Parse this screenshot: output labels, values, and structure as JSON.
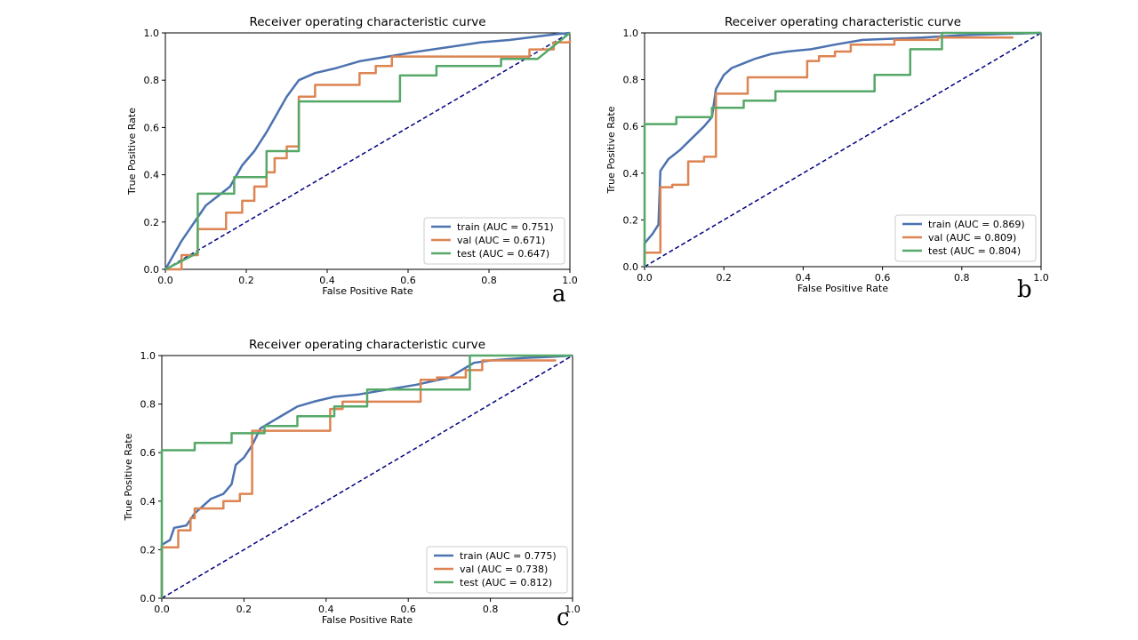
{
  "chart_data": [
    {
      "panel": "a",
      "type": "line",
      "title": "Receiver operating characteristic curve",
      "xlabel": "False Positive Rate",
      "ylabel": "True Positive Rate",
      "xlim": [
        0,
        1
      ],
      "ylim": [
        0,
        1
      ],
      "xticks": [
        "0.0",
        "0.2",
        "0.4",
        "0.6",
        "0.8",
        "1.0"
      ],
      "yticks": [
        "0.0",
        "0.2",
        "0.4",
        "0.6",
        "0.8",
        "1.0"
      ],
      "legend_position": "lower-right",
      "reference_line": {
        "style": "dashed",
        "color": "#000080",
        "x": [
          0,
          1
        ],
        "y": [
          0,
          1
        ]
      },
      "series": [
        {
          "name": "train (AUC = 0.751)",
          "color": "#4c72b0",
          "x": [
            0,
            0.02,
            0.04,
            0.06,
            0.08,
            0.1,
            0.13,
            0.16,
            0.19,
            0.22,
            0.25,
            0.28,
            0.3,
            0.33,
            0.37,
            0.42,
            0.48,
            0.55,
            0.62,
            0.7,
            0.78,
            0.85,
            0.92,
            0.97,
            1.0
          ],
          "y": [
            0,
            0.06,
            0.12,
            0.17,
            0.22,
            0.27,
            0.31,
            0.35,
            0.44,
            0.5,
            0.58,
            0.67,
            0.73,
            0.8,
            0.83,
            0.85,
            0.88,
            0.9,
            0.92,
            0.94,
            0.96,
            0.97,
            0.985,
            0.995,
            1.0
          ]
        },
        {
          "name": "val (AUC = 0.671)",
          "color": "#dd8452",
          "x": [
            0,
            0.04,
            0.04,
            0.08,
            0.08,
            0.15,
            0.15,
            0.19,
            0.19,
            0.22,
            0.22,
            0.25,
            0.25,
            0.27,
            0.27,
            0.3,
            0.3,
            0.33,
            0.33,
            0.37,
            0.37,
            0.48,
            0.48,
            0.52,
            0.52,
            0.56,
            0.56,
            0.9,
            0.9,
            0.96,
            0.96,
            1.0,
            1.0
          ],
          "y": [
            0,
            0,
            0.06,
            0.06,
            0.17,
            0.17,
            0.24,
            0.24,
            0.29,
            0.29,
            0.35,
            0.35,
            0.41,
            0.41,
            0.47,
            0.47,
            0.52,
            0.52,
            0.73,
            0.73,
            0.78,
            0.78,
            0.83,
            0.83,
            0.86,
            0.86,
            0.9,
            0.9,
            0.93,
            0.93,
            0.96,
            0.96,
            0.97
          ]
        },
        {
          "name": "test (AUC = 0.647)",
          "color": "#55a868",
          "x": [
            0,
            0.08,
            0.08,
            0.17,
            0.17,
            0.25,
            0.25,
            0.33,
            0.33,
            0.58,
            0.58,
            0.67,
            0.67,
            0.83,
            0.83,
            0.92,
            1.0
          ],
          "y": [
            0,
            0.07,
            0.32,
            0.32,
            0.39,
            0.39,
            0.5,
            0.5,
            0.71,
            0.71,
            0.82,
            0.82,
            0.86,
            0.86,
            0.89,
            0.89,
            1.0
          ]
        }
      ]
    },
    {
      "panel": "b",
      "type": "line",
      "title": "Receiver operating characteristic curve",
      "xlabel": "False Positive Rate",
      "ylabel": "True Positive Rate",
      "xlim": [
        0,
        1
      ],
      "ylim": [
        0,
        1
      ],
      "xticks": [
        "0.0",
        "0.2",
        "0.4",
        "0.6",
        "0.8",
        "1.0"
      ],
      "yticks": [
        "0.0",
        "0.2",
        "0.4",
        "0.6",
        "0.8",
        "1.0"
      ],
      "legend_position": "lower-right",
      "reference_line": {
        "style": "dashed",
        "color": "#000080",
        "x": [
          0,
          1
        ],
        "y": [
          0,
          1
        ]
      },
      "series": [
        {
          "name": "train (AUC = 0.869)",
          "color": "#4c72b0",
          "x": [
            0,
            0.0,
            0.02,
            0.035,
            0.04,
            0.06,
            0.09,
            0.12,
            0.15,
            0.17,
            0.18,
            0.2,
            0.22,
            0.25,
            0.28,
            0.32,
            0.36,
            0.42,
            0.48,
            0.55,
            0.62,
            0.7,
            0.8,
            0.9,
            1.0
          ],
          "y": [
            0,
            0.1,
            0.14,
            0.18,
            0.41,
            0.46,
            0.5,
            0.55,
            0.6,
            0.64,
            0.76,
            0.82,
            0.85,
            0.87,
            0.89,
            0.91,
            0.92,
            0.93,
            0.95,
            0.97,
            0.975,
            0.98,
            0.99,
            0.995,
            1.0
          ]
        },
        {
          "name": "val (AUC = 0.809)",
          "color": "#dd8452",
          "x": [
            0,
            0.0,
            0.04,
            0.04,
            0.07,
            0.07,
            0.11,
            0.11,
            0.15,
            0.15,
            0.18,
            0.18,
            0.26,
            0.26,
            0.41,
            0.41,
            0.44,
            0.44,
            0.48,
            0.48,
            0.52,
            0.52,
            0.63,
            0.63,
            0.74,
            0.74,
            0.93
          ],
          "y": [
            0,
            0.06,
            0.06,
            0.34,
            0.34,
            0.35,
            0.35,
            0.45,
            0.45,
            0.47,
            0.47,
            0.74,
            0.74,
            0.81,
            0.81,
            0.88,
            0.88,
            0.9,
            0.9,
            0.92,
            0.92,
            0.95,
            0.95,
            0.97,
            0.97,
            0.98,
            0.98
          ]
        },
        {
          "name": "test (AUC = 0.804)",
          "color": "#55a868",
          "x": [
            0,
            0.0,
            0.08,
            0.08,
            0.17,
            0.17,
            0.25,
            0.25,
            0.33,
            0.33,
            0.58,
            0.58,
            0.67,
            0.67,
            0.75,
            0.75,
            1.0
          ],
          "y": [
            0,
            0.61,
            0.61,
            0.64,
            0.64,
            0.68,
            0.68,
            0.71,
            0.71,
            0.75,
            0.75,
            0.82,
            0.82,
            0.93,
            0.93,
            1.0,
            1.0
          ]
        }
      ]
    },
    {
      "panel": "c",
      "type": "line",
      "title": "Receiver operating characteristic curve",
      "xlabel": "False Positive Rate",
      "ylabel": "True Positive Rate",
      "xlim": [
        0,
        1
      ],
      "ylim": [
        0,
        1
      ],
      "xticks": [
        "0.0",
        "0.2",
        "0.4",
        "0.6",
        "0.8",
        "1.0"
      ],
      "yticks": [
        "0.0",
        "0.2",
        "0.4",
        "0.6",
        "0.8",
        "1.0"
      ],
      "legend_position": "lower-right",
      "reference_line": {
        "style": "dashed",
        "color": "#000080",
        "x": [
          0,
          1
        ],
        "y": [
          0,
          1
        ]
      },
      "series": [
        {
          "name": "train (AUC = 0.775)",
          "color": "#4c72b0",
          "x": [
            0,
            0.0,
            0.02,
            0.03,
            0.06,
            0.08,
            0.1,
            0.12,
            0.15,
            0.17,
            0.18,
            0.2,
            0.22,
            0.24,
            0.27,
            0.3,
            0.33,
            0.37,
            0.42,
            0.48,
            0.55,
            0.62,
            0.7,
            0.76,
            0.8,
            0.88,
            0.95,
            1.0
          ],
          "y": [
            0,
            0.22,
            0.24,
            0.29,
            0.3,
            0.35,
            0.38,
            0.41,
            0.43,
            0.47,
            0.55,
            0.58,
            0.63,
            0.7,
            0.73,
            0.76,
            0.79,
            0.81,
            0.83,
            0.84,
            0.86,
            0.88,
            0.91,
            0.97,
            0.98,
            0.99,
            0.995,
            1.0
          ]
        },
        {
          "name": "val (AUC = 0.738)",
          "color": "#dd8452",
          "x": [
            0,
            0.0,
            0.04,
            0.04,
            0.07,
            0.07,
            0.08,
            0.08,
            0.15,
            0.15,
            0.19,
            0.19,
            0.22,
            0.22,
            0.41,
            0.41,
            0.44,
            0.44,
            0.63,
            0.63,
            0.67,
            0.67,
            0.74,
            0.74,
            0.78,
            0.78,
            0.96
          ],
          "y": [
            0,
            0.21,
            0.21,
            0.28,
            0.28,
            0.33,
            0.33,
            0.37,
            0.37,
            0.4,
            0.4,
            0.43,
            0.43,
            0.69,
            0.69,
            0.78,
            0.78,
            0.81,
            0.81,
            0.9,
            0.9,
            0.91,
            0.91,
            0.94,
            0.94,
            0.98,
            0.98
          ]
        },
        {
          "name": "test (AUC = 0.812)",
          "color": "#55a868",
          "x": [
            0,
            0.0,
            0.08,
            0.08,
            0.17,
            0.17,
            0.25,
            0.25,
            0.33,
            0.33,
            0.42,
            0.42,
            0.5,
            0.5,
            0.75,
            0.75,
            1.0
          ],
          "y": [
            0,
            0.61,
            0.61,
            0.64,
            0.64,
            0.68,
            0.68,
            0.71,
            0.71,
            0.75,
            0.75,
            0.79,
            0.79,
            0.86,
            0.86,
            1.0,
            1.0
          ]
        }
      ]
    }
  ]
}
